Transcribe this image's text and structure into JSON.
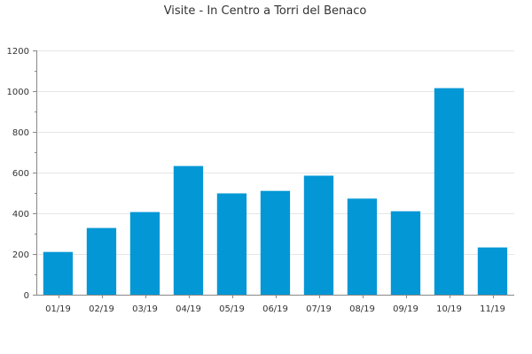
{
  "chart_data": {
    "type": "bar",
    "title": "Visite - In Centro a Torri del Benaco",
    "xlabel": "",
    "ylabel": "",
    "categories": [
      "01/19",
      "02/19",
      "03/19",
      "04/19",
      "05/19",
      "06/19",
      "07/19",
      "08/19",
      "09/19",
      "10/19",
      "11/19"
    ],
    "values": [
      210,
      328,
      406,
      632,
      498,
      510,
      585,
      472,
      410,
      1015,
      232
    ],
    "ylim": [
      0,
      1200
    ],
    "yticks": [
      0,
      200,
      400,
      600,
      800,
      1000,
      1200
    ],
    "grid": true,
    "legend": "none",
    "colors": {
      "bar": "#0397d6",
      "grid": "#e6e6e6",
      "axis": "#888888",
      "text": "#333333"
    }
  }
}
